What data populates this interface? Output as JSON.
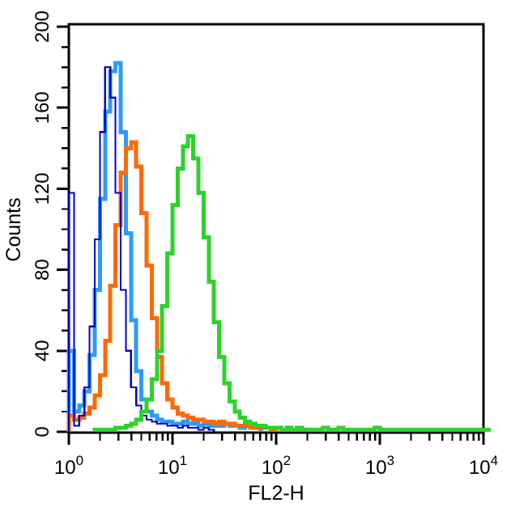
{
  "chart_data": {
    "type": "line",
    "style": "step-histogram-overlay",
    "title": "",
    "xlabel": "FL2-H",
    "ylabel": "Counts",
    "x_scale": "log10",
    "xlim_log10": [
      0,
      4
    ],
    "x_tick_exponents": [
      0,
      1,
      2,
      3,
      4
    ],
    "x_tick_base": "10",
    "ylim": [
      0,
      200
    ],
    "y_ticks_major": [
      0,
      40,
      80,
      120,
      160,
      200
    ],
    "y_minor_tick_step": 10,
    "grid": "off",
    "legend": "none",
    "frame": true,
    "background_color": "#ffffff",
    "axis_color": "#000000",
    "bin_log10_start": 0.0,
    "bin_log10_step": 0.05,
    "series": [
      {
        "name": "light-blue",
        "color": "#2E9BF6",
        "line_width": 5,
        "peak_count": 182,
        "peak_x": 2.8,
        "values": [
          40,
          10,
          13,
          20,
          38,
          70,
          115,
          158,
          178,
          182,
          148,
          98,
          55,
          30,
          16,
          10,
          8,
          6,
          5,
          5,
          4,
          4,
          5,
          4,
          4,
          3,
          4,
          3,
          3,
          3,
          4,
          3,
          3,
          2,
          3,
          2,
          2,
          0,
          0,
          0,
          0,
          0,
          0,
          0,
          0,
          0,
          0,
          0,
          0,
          0,
          0,
          0,
          0,
          0,
          0,
          0,
          0,
          0,
          0,
          0,
          0,
          0,
          0,
          0,
          0,
          0,
          0,
          0,
          0,
          0,
          0,
          0,
          0,
          0,
          0,
          0,
          0,
          0,
          0,
          0,
          0
        ]
      },
      {
        "name": "orange",
        "color": "#FF6A00",
        "line_width": 5,
        "peak_count": 143,
        "peak_x": 4.0,
        "values": [
          8,
          6,
          7,
          9,
          12,
          18,
          28,
          45,
          72,
          102,
          128,
          140,
          143,
          131,
          108,
          82,
          56,
          37,
          24,
          16,
          12,
          9,
          8,
          7,
          6,
          6,
          5,
          5,
          4,
          5,
          4,
          4,
          3,
          3,
          3,
          2,
          2,
          2,
          2,
          1,
          2,
          1,
          1,
          1,
          1,
          1,
          0,
          0,
          0,
          0,
          0,
          0,
          0,
          0,
          0,
          0,
          0,
          0,
          0,
          0,
          0,
          0,
          0,
          0,
          0,
          0,
          0,
          0,
          0,
          0,
          0,
          0,
          0,
          0,
          0,
          0,
          0,
          0,
          0,
          0,
          0
        ]
      },
      {
        "name": "dark-blue",
        "color": "#0000CC",
        "line_width": 2.2,
        "peak_count": 180,
        "peak_x": 2.2,
        "values": [
          118,
          3,
          8,
          22,
          52,
          95,
          148,
          180,
          165,
          118,
          70,
          40,
          22,
          13,
          8,
          6,
          5,
          4,
          4,
          3,
          3,
          2,
          3,
          2,
          2,
          1,
          2,
          1,
          0,
          0,
          0,
          0,
          0,
          0,
          0,
          0,
          0,
          0,
          0,
          0,
          0,
          0,
          0,
          0,
          0,
          0,
          0,
          0,
          0,
          0,
          0,
          0,
          0,
          0,
          0,
          0,
          0,
          0,
          0,
          0,
          0,
          0,
          0,
          0,
          0,
          0,
          0,
          0,
          0,
          0,
          0,
          0,
          0,
          0,
          0,
          0,
          0,
          0,
          0,
          0,
          0
        ]
      },
      {
        "name": "green",
        "color": "#2BD42B",
        "line_width": 5,
        "peak_count": 146,
        "peak_x": 14.0,
        "values": [
          0,
          0,
          0,
          0,
          0,
          1,
          1,
          1,
          1,
          2,
          2,
          3,
          4,
          6,
          10,
          16,
          26,
          40,
          62,
          88,
          112,
          130,
          141,
          146,
          135,
          118,
          96,
          74,
          54,
          37,
          24,
          15,
          10,
          7,
          5,
          4,
          3,
          3,
          2,
          2,
          2,
          1,
          2,
          1,
          2,
          1,
          1,
          1,
          1,
          2,
          1,
          1,
          2,
          1,
          1,
          1,
          1,
          1,
          1,
          2,
          1,
          1,
          1,
          1,
          1,
          1,
          1,
          1,
          1,
          1,
          1,
          1,
          1,
          1,
          1,
          1,
          1,
          1,
          1,
          1,
          1
        ]
      }
    ]
  }
}
